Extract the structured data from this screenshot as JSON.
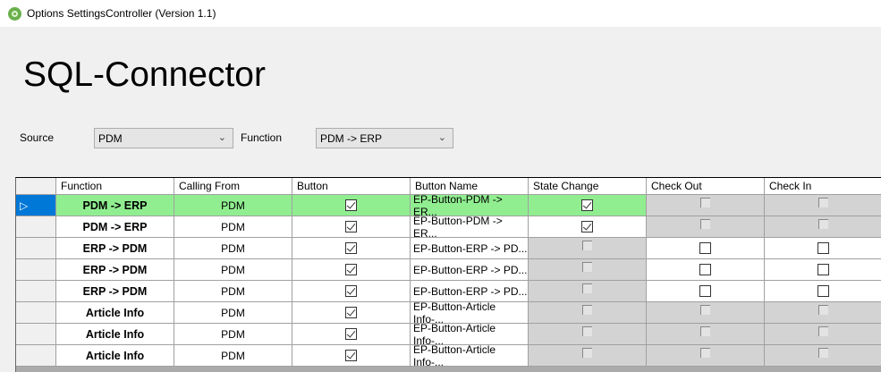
{
  "window": {
    "title": "Options SettingsController (Version 1.1)",
    "icon": "gear-icon"
  },
  "heading": "SQL-Connector",
  "filters": {
    "source_label": "Source",
    "source_value": "PDM",
    "function_label": "Function",
    "function_value": "PDM -> ERP"
  },
  "colors": {
    "selected_row": "#90ee90",
    "row_header_selected": "#0078d7",
    "disabled_cell": "#d3d3d3"
  },
  "grid": {
    "columns": [
      "Function",
      "Calling From",
      "Button",
      "Button Name",
      "State Change",
      "Check Out",
      "Check In"
    ],
    "rows": [
      {
        "function": "PDM -> ERP",
        "calling_from": "PDM",
        "button": "checked",
        "button_name": "EP-Button-PDM -> ER...",
        "state_change": "checked",
        "check_out": "disabled",
        "check_in": "disabled",
        "selected": true
      },
      {
        "function": "PDM -> ERP",
        "calling_from": "PDM",
        "button": "checked",
        "button_name": "EP-Button-PDM -> ER...",
        "state_change": "checked",
        "check_out": "disabled",
        "check_in": "disabled"
      },
      {
        "function": "ERP -> PDM",
        "calling_from": "PDM",
        "button": "checked",
        "button_name": "EP-Button-ERP -> PD...",
        "state_change": "disabled",
        "check_out": "unchecked",
        "check_in": "unchecked"
      },
      {
        "function": "ERP -> PDM",
        "calling_from": "PDM",
        "button": "checked",
        "button_name": "EP-Button-ERP -> PD...",
        "state_change": "disabled",
        "check_out": "unchecked",
        "check_in": "unchecked"
      },
      {
        "function": "ERP -> PDM",
        "calling_from": "PDM",
        "button": "checked",
        "button_name": "EP-Button-ERP -> PD...",
        "state_change": "disabled",
        "check_out": "unchecked",
        "check_in": "unchecked"
      },
      {
        "function": "Article Info",
        "calling_from": "PDM",
        "button": "checked",
        "button_name": "EP-Button-Article Info-...",
        "state_change": "disabled",
        "check_out": "disabled",
        "check_in": "disabled"
      },
      {
        "function": "Article Info",
        "calling_from": "PDM",
        "button": "checked",
        "button_name": "EP-Button-Article Info-...",
        "state_change": "disabled",
        "check_out": "disabled",
        "check_in": "disabled"
      },
      {
        "function": "Article Info",
        "calling_from": "PDM",
        "button": "checked",
        "button_name": "EP-Button-Article Info-...",
        "state_change": "disabled",
        "check_out": "disabled",
        "check_in": "disabled"
      }
    ]
  }
}
